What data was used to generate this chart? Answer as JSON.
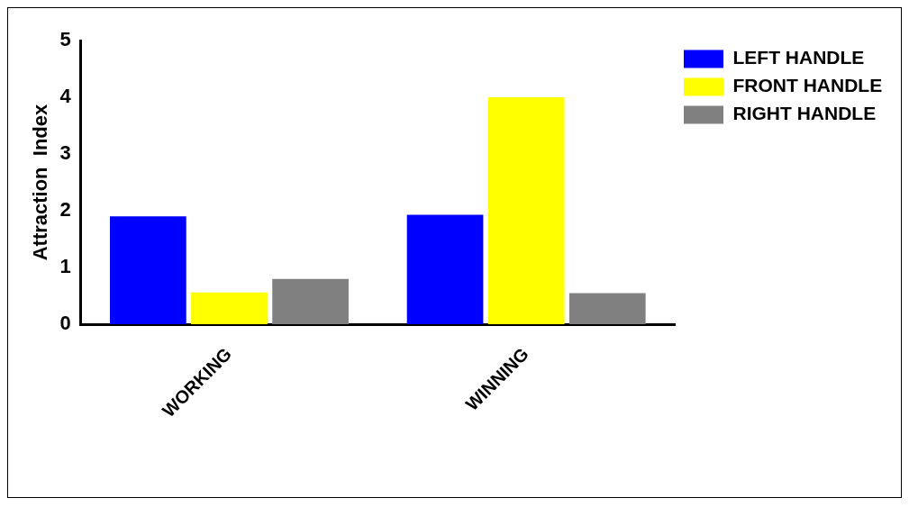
{
  "chart_data": {
    "type": "bar",
    "ylabel": "Attraction  Index",
    "categories": [
      "WORKING",
      "WINNING"
    ],
    "series": [
      {
        "name": "LEFT HANDLE",
        "color": "#0000ff",
        "values": [
          1.9,
          1.93
        ]
      },
      {
        "name": "FRONT HANDLE",
        "color": "#ffff00",
        "values": [
          0.56,
          4.0
        ]
      },
      {
        "name": "RIGHT HANDLE",
        "color": "#808080",
        "values": [
          0.8,
          0.55
        ]
      }
    ],
    "ylim": [
      0,
      5
    ],
    "yticks": [
      0,
      1,
      2,
      3,
      4,
      5
    ],
    "grid": false,
    "legend": "top right"
  }
}
